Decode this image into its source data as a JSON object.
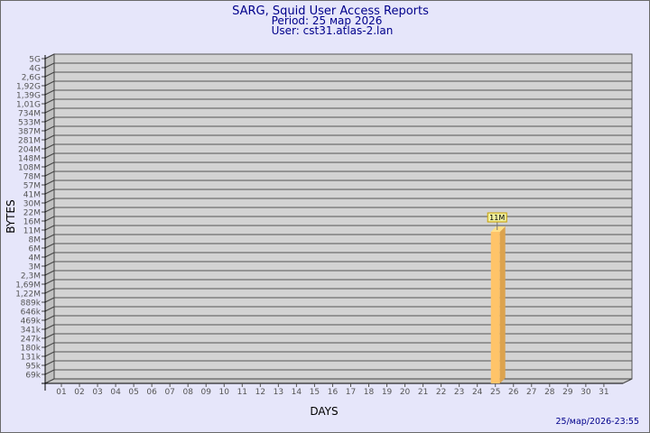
{
  "header": {
    "title": "SARG, Squid User Access Reports",
    "period": "Period: 25 мар 2026",
    "user": "User: cst31.atlas-2.lan"
  },
  "footer": {
    "timestamp": "25/мар/2026-23:55"
  },
  "chart_data": {
    "type": "bar",
    "title": "SARG, Squid User Access Reports",
    "xlabel": "DAYS",
    "ylabel": "BYTES",
    "y_scale": "logarithmic (labelled levels)",
    "y_tick_labels": [
      "5G",
      "4G",
      "2,6G",
      "1,92G",
      "1,39G",
      "1,01G",
      "734M",
      "533M",
      "387M",
      "281M",
      "204M",
      "148M",
      "108M",
      "78M",
      "57M",
      "41M",
      "30M",
      "22M",
      "16M",
      "11M",
      "8M",
      "6M",
      "4M",
      "3M",
      "2,3M",
      "1,69M",
      "1,22M",
      "889k",
      "646k",
      "469k",
      "341k",
      "247k",
      "180k",
      "131k",
      "95k",
      "69k"
    ],
    "categories": [
      "01",
      "02",
      "03",
      "04",
      "05",
      "06",
      "07",
      "08",
      "09",
      "10",
      "11",
      "12",
      "13",
      "14",
      "15",
      "16",
      "17",
      "18",
      "19",
      "20",
      "21",
      "22",
      "23",
      "24",
      "25",
      "26",
      "27",
      "28",
      "29",
      "30",
      "31"
    ],
    "bars": [
      {
        "day": "25",
        "value": "11M",
        "label": "11M"
      }
    ],
    "grid": true,
    "colors": {
      "bar": "#ffc469",
      "bar_side": "#dca34e",
      "bar_top": "#ffe08a",
      "wall": "#d3d3d3",
      "background": "#e6e6fa",
      "title": "#00008b",
      "label_bg": "#f0f0a0"
    }
  }
}
